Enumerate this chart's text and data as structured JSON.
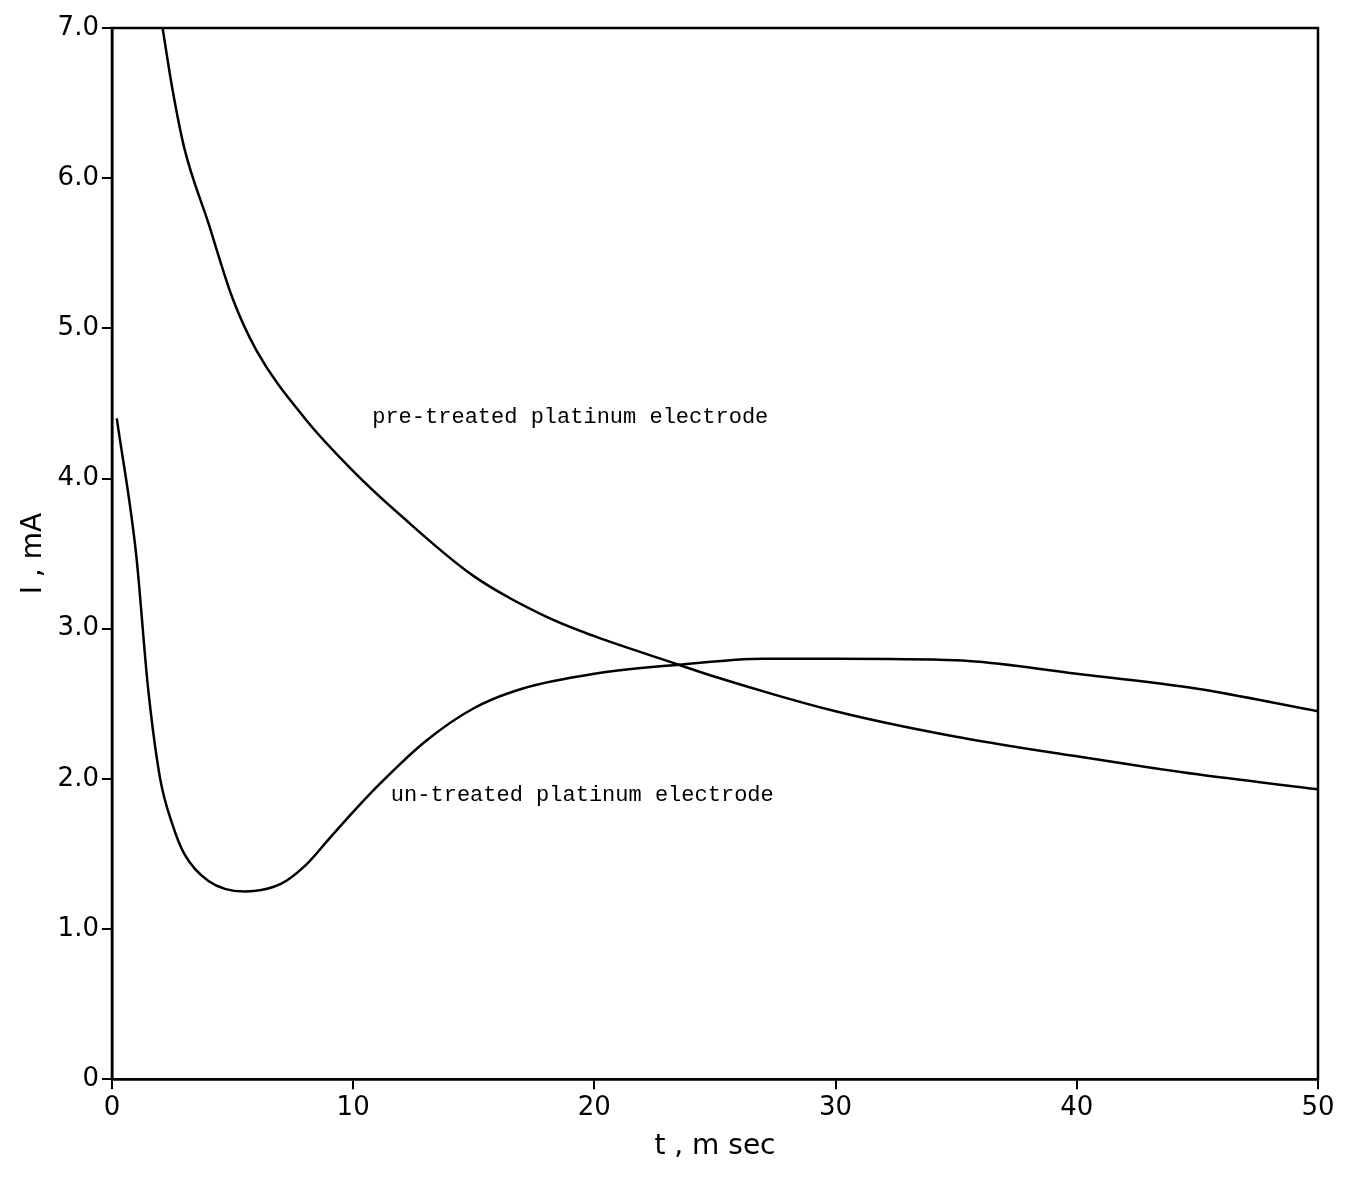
{
  "chart_data": {
    "type": "line",
    "xlabel": "t , m sec",
    "ylabel": "I , mA",
    "xlim": [
      0,
      50
    ],
    "xticks": [
      0,
      10,
      20,
      30,
      40,
      50
    ],
    "ylim": [
      0,
      7
    ],
    "yticks": [
      0,
      {
        "value": 1,
        "label": "1.0"
      },
      {
        "value": 2,
        "label": "2.0"
      },
      {
        "value": 3,
        "label": "3.0"
      },
      {
        "value": 4,
        "label": "4.0"
      },
      {
        "value": 5,
        "label": "5.0"
      },
      {
        "value": 6,
        "label": "6.0"
      },
      {
        "value": 7,
        "label": "7.0"
      }
    ],
    "grid": false,
    "legend": false,
    "marker": "none",
    "line_style": "solid",
    "series": [
      {
        "name": "pre-treated platinum electrode",
        "color": "#000000",
        "x": [
          2.1,
          2.5,
          3,
          4,
          5,
          6,
          8,
          10,
          12,
          15,
          18,
          20,
          23.5,
          25,
          30,
          35,
          40,
          45,
          50
        ],
        "values": [
          7.0,
          6.6,
          6.2,
          5.7,
          5.2,
          4.85,
          4.4,
          4.05,
          3.75,
          3.35,
          3.08,
          2.95,
          2.76,
          2.68,
          2.45,
          2.28,
          2.15,
          2.03,
          1.93
        ]
      },
      {
        "name": "un-treated platinum electrode",
        "color": "#000000",
        "x": [
          0.2,
          1,
          1.5,
          2,
          2.5,
          3,
          4,
          5.5,
          7,
          8,
          9,
          10,
          11,
          13,
          15,
          17,
          20,
          23.5,
          27,
          30,
          35,
          40,
          45,
          50
        ],
        "values": [
          4.4,
          3.5,
          2.6,
          2.0,
          1.7,
          1.5,
          1.32,
          1.25,
          1.3,
          1.42,
          1.6,
          1.78,
          1.95,
          2.25,
          2.47,
          2.6,
          2.7,
          2.76,
          2.8,
          2.8,
          2.79,
          2.7,
          2.6,
          2.45
        ]
      }
    ]
  }
}
